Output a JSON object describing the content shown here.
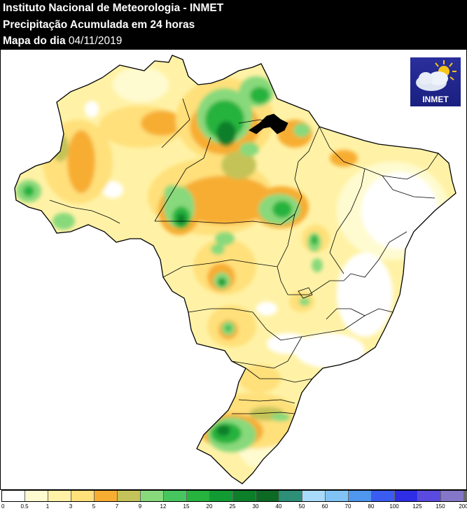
{
  "header": {
    "line1": "Instituto Nacional de Meteorologia - INMET",
    "line2": "Precipitação Acumulada em 24 horas",
    "line3_prefix": "Mapa do dia",
    "date": "04/11/2019"
  },
  "logo": {
    "text": "INMET",
    "icon": "cloud-sun-icon"
  },
  "legend": {
    "labels": [
      "0",
      "0.5",
      "1",
      "3",
      "5",
      "7",
      "9",
      "12",
      "15",
      "20",
      "25",
      "30",
      "40",
      "50",
      "60",
      "70",
      "80",
      "100",
      "125",
      "150",
      "200"
    ],
    "colors": [
      "#ffffff",
      "#fffbd0",
      "#fff2a6",
      "#ffe07a",
      "#f7ad32",
      "#c4c359",
      "#88d97c",
      "#47c65f",
      "#26b33e",
      "#119c33",
      "#0d7f2b",
      "#0c6a25",
      "#2d8f78",
      "#a8dbfb",
      "#80c3f4",
      "#4f96ef",
      "#3a5cf0",
      "#2e2ee6",
      "#5a4be0",
      "#8577c8",
      "#6a6a6a"
    ]
  },
  "map_colors": {
    "base": "#fff2a6",
    "light": "#fffbd0",
    "yellow": "#ffe07a",
    "orange": "#f7ad32",
    "olive": "#c4c359",
    "green1": "#88d97c",
    "green2": "#47c65f",
    "green3": "#26b33e",
    "green4": "#119c33",
    "green5": "#0d7f2b",
    "green6": "#0c6a25"
  }
}
